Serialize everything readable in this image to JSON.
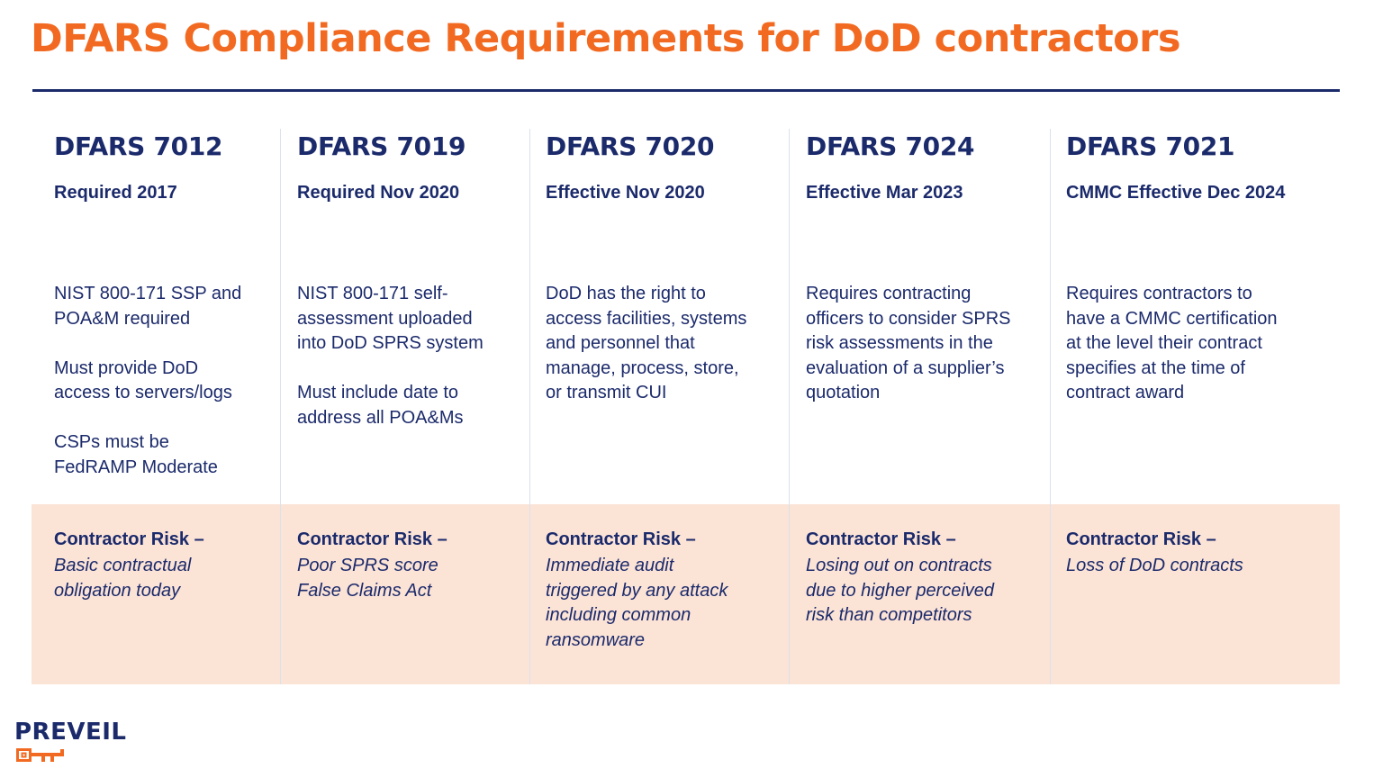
{
  "title": "DFARS Compliance Requirements for DoD contractors",
  "colors": {
    "accent": "#f26a21",
    "navy": "#1b2a6b",
    "risk_band": "#fbe3d6",
    "divider": "#dbe2ec"
  },
  "columns": [
    {
      "code": "DFARS 7012",
      "status": "Required 2017",
      "paragraphs": [
        [
          "NIST 800-171 SSP and",
          "POA&M required"
        ],
        [
          "Must provide DoD",
          "access to servers/logs"
        ],
        [
          "CSPs must be",
          "FedRAMP Moderate"
        ]
      ],
      "risk_label": "Contractor Risk –",
      "risk_lines": [
        "Basic contractual",
        "obligation today"
      ]
    },
    {
      "code": "DFARS 7019",
      "status": "Required Nov 2020",
      "paragraphs": [
        [
          "NIST 800-171 self-",
          "assessment uploaded",
          "into DoD SPRS system"
        ],
        [
          "Must include date to",
          "address all POA&Ms"
        ]
      ],
      "risk_label": "Contractor Risk –",
      "risk_lines": [
        "Poor SPRS score",
        "False Claims Act"
      ]
    },
    {
      "code": "DFARS 7020",
      "status": "Effective Nov 2020",
      "paragraphs": [
        [
          "DoD has the right to",
          "access facilities, systems",
          "and personnel that",
          "manage, process, store,",
          "or transmit CUI"
        ]
      ],
      "risk_label": "Contractor Risk –",
      "risk_lines": [
        "Immediate audit",
        "triggered by any attack",
        "including common",
        "ransomware"
      ]
    },
    {
      "code": "DFARS 7024",
      "status": "Effective Mar 2023",
      "paragraphs": [
        [
          "Requires contracting",
          "officers to consider SPRS",
          "risk assessments in the",
          "evaluation of a supplier’s",
          "quotation"
        ]
      ],
      "risk_label": "Contractor Risk –",
      "risk_lines": [
        "Losing out on contracts",
        "due to higher perceived",
        "risk than competitors"
      ]
    },
    {
      "code": "DFARS 7021",
      "status": "CMMC Effective Dec 2024",
      "paragraphs": [
        [
          "Requires contractors to",
          "have a CMMC certification",
          "at the level their contract",
          "specifies at the time of",
          "contract award"
        ]
      ],
      "risk_label": "Contractor Risk –",
      "risk_lines": [
        "Loss of DoD contracts"
      ]
    }
  ],
  "logo": {
    "text": "PREVEIL",
    "icon": "key-icon"
  }
}
